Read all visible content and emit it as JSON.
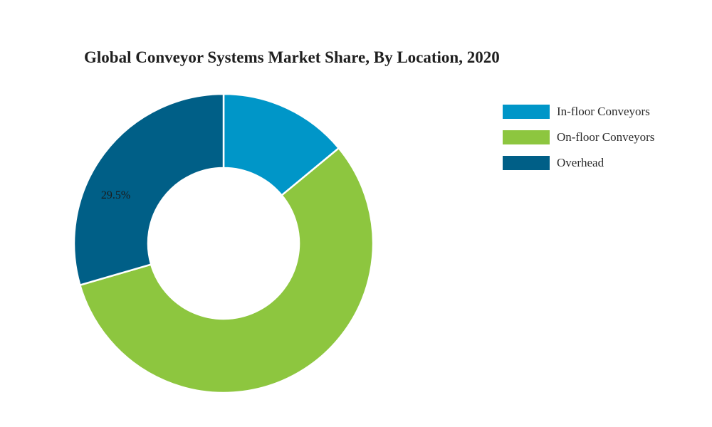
{
  "chart_data": {
    "type": "pie",
    "title": "Global Conveyor Systems Market Share, By Location, 2020",
    "categories": [
      "In-floor Conveyors",
      "On-floor Conveyors",
      "Overhead"
    ],
    "values": [
      14.0,
      56.5,
      29.5
    ],
    "colors": [
      "#0096c8",
      "#8dc63f",
      "#005f87"
    ],
    "data_labels": [
      "",
      "",
      "29.5%"
    ],
    "legend": "right"
  }
}
